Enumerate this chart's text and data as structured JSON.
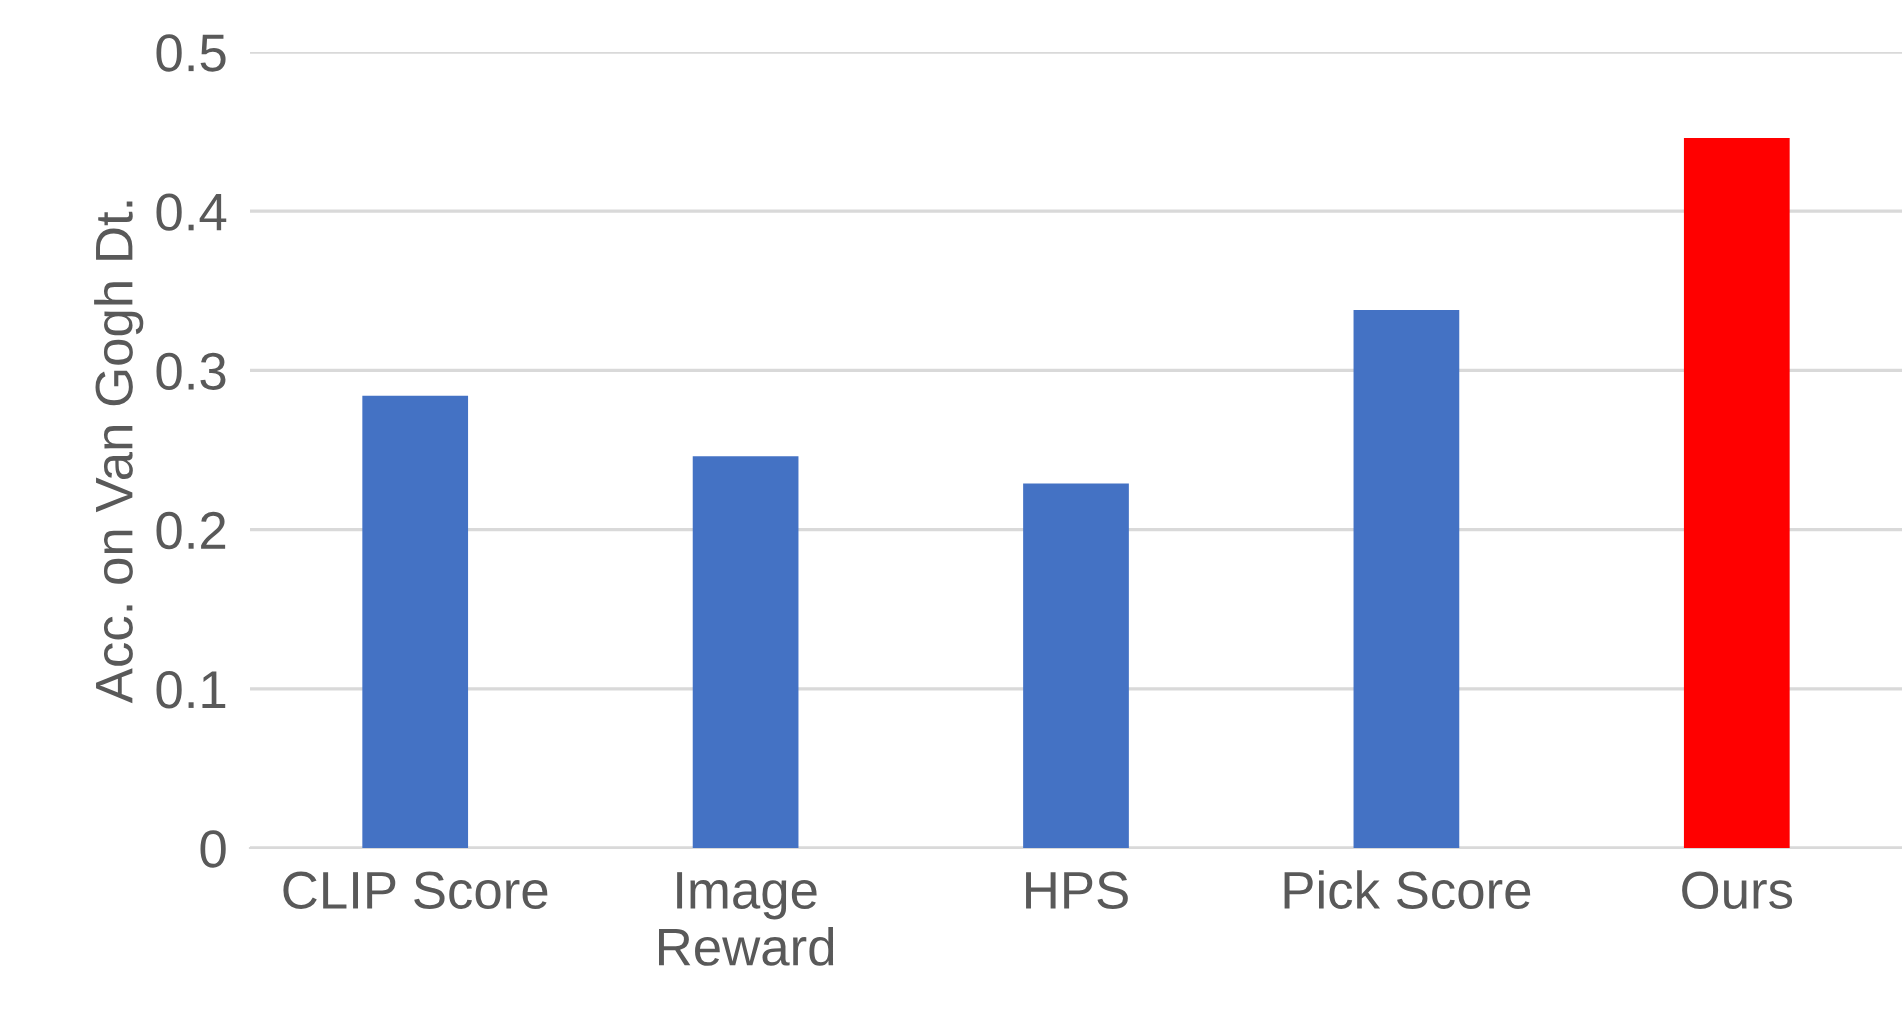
{
  "chart_data": {
    "type": "bar",
    "ylabel": "Acc. on Van Gogh Dt.",
    "categories": [
      "CLIP Score",
      "Image\nReward",
      "HPS",
      "Pick Score",
      "Ours"
    ],
    "values": [
      0.284,
      0.246,
      0.229,
      0.338,
      0.446
    ],
    "colors": [
      "#4472c4",
      "#4472c4",
      "#4472c4",
      "#4472c4",
      "#ff0000"
    ],
    "ylim": [
      0,
      0.5
    ],
    "yticks": [
      0,
      0.1,
      0.2,
      0.3,
      0.4,
      0.5
    ],
    "grid": "y"
  }
}
